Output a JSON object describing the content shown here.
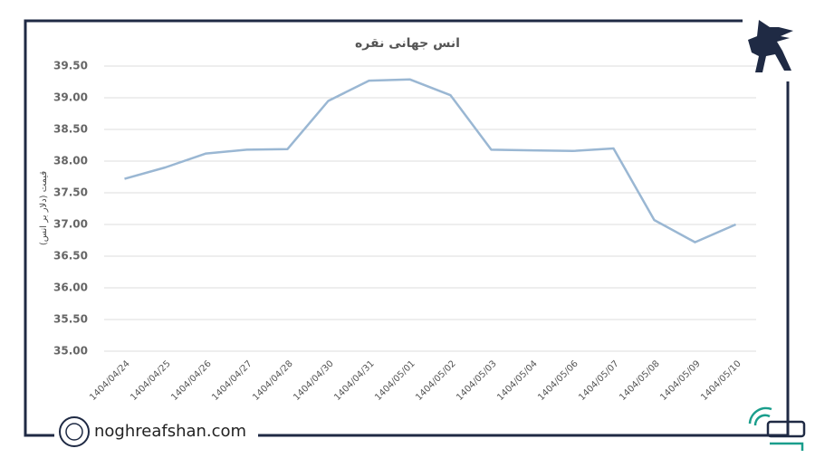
{
  "chart_data": {
    "type": "line",
    "title": "انس جهانی نقره",
    "y_label": "قیمت (دلار بر انس)",
    "categories": [
      "1404/04/24",
      "1404/04/25",
      "1404/04/26",
      "1404/04/27",
      "1404/04/28",
      "1404/04/30",
      "1404/04/31",
      "1404/05/01",
      "1404/05/02",
      "1404/05/03",
      "1404/05/04",
      "1404/05/06",
      "1404/05/07",
      "1404/05/08",
      "1404/05/09",
      "1404/05/10"
    ],
    "values": [
      37.72,
      37.9,
      38.12,
      38.18,
      38.19,
      38.95,
      39.27,
      39.29,
      39.04,
      38.18,
      38.17,
      38.16,
      38.2,
      37.07,
      36.72,
      37.0
    ],
    "color": "#9ab7d3",
    "ylim": [
      35,
      39.5
    ],
    "yticks": [
      {
        "value": 35,
        "label": "35.00"
      },
      {
        "value": 35.5,
        "label": "35.50"
      },
      {
        "value": 36,
        "label": "36.00"
      },
      {
        "value": 36.5,
        "label": "36.50"
      },
      {
        "value": 37,
        "label": "37.00"
      },
      {
        "value": 37.5,
        "label": "37.50"
      },
      {
        "value": 38,
        "label": "38.00"
      },
      {
        "value": 38.5,
        "label": "38.50"
      },
      {
        "value": 39,
        "label": "39.00"
      },
      {
        "value": 39.5,
        "label": "39.50"
      }
    ],
    "grid": true
  },
  "footer": {
    "website": "noghreafshan.com"
  }
}
